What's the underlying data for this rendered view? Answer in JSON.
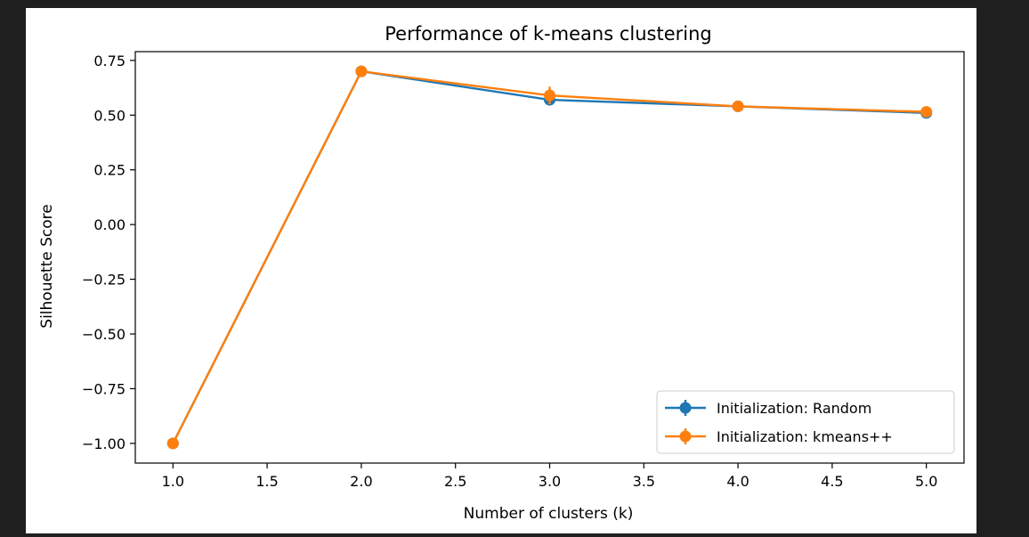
{
  "chart_data": {
    "type": "line",
    "title": "Performance of k-means clustering",
    "xlabel": "Number of clusters (k)",
    "ylabel": "Silhouette Score",
    "xlim": [
      0.8,
      5.2
    ],
    "ylim": [
      -1.09,
      0.79
    ],
    "xticks": [
      1.0,
      1.5,
      2.0,
      2.5,
      3.0,
      3.5,
      4.0,
      4.5,
      5.0
    ],
    "xtick_labels": [
      "1.0",
      "1.5",
      "2.0",
      "2.5",
      "3.0",
      "3.5",
      "4.0",
      "4.5",
      "5.0"
    ],
    "yticks": [
      0.75,
      0.5,
      0.25,
      0.0,
      -0.25,
      -0.5,
      -0.75,
      -1.0
    ],
    "ytick_labels": [
      "0.75",
      "0.50",
      "0.25",
      "0.00",
      "−0.25",
      "−0.50",
      "−0.75",
      "−1.00"
    ],
    "grid": false,
    "legend_position": "bottom-right",
    "series": [
      {
        "name": "Initialization: Random",
        "color": "#1f77b4",
        "x": [
          1,
          2,
          3,
          4,
          5
        ],
        "y": [
          -1.0,
          0.7,
          0.57,
          0.54,
          0.51
        ],
        "yerr": [
          0.0,
          0.0,
          0.01,
          0.005,
          0.005
        ]
      },
      {
        "name": "Initialization: kmeans++",
        "color": "#ff7f0e",
        "x": [
          1,
          2,
          3,
          4,
          5
        ],
        "y": [
          -1.0,
          0.7,
          0.59,
          0.54,
          0.515
        ],
        "yerr": [
          0.0,
          0.0,
          0.04,
          0.005,
          0.005
        ]
      }
    ]
  }
}
